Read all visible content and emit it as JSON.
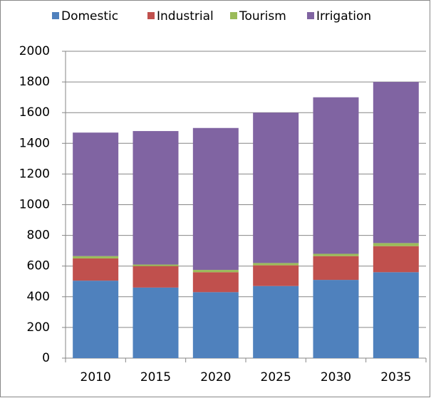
{
  "chart_data": {
    "type": "stacked_bar",
    "categories": [
      "2010",
      "2015",
      "2020",
      "2025",
      "2030",
      "2035"
    ],
    "series": [
      {
        "name": "Domestic",
        "color": "#4f81bd",
        "values": [
          505,
          460,
          430,
          470,
          510,
          560
        ]
      },
      {
        "name": "Industrial",
        "color": "#c0504d",
        "values": [
          145,
          140,
          130,
          135,
          155,
          170
        ]
      },
      {
        "name": "Tourism",
        "color": "#9bbb59",
        "values": [
          15,
          10,
          15,
          15,
          15,
          20
        ]
      },
      {
        "name": "Irrigation",
        "color": "#8064a2",
        "values": [
          805,
          870,
          925,
          980,
          1020,
          1050
        ]
      }
    ],
    "ylim": [
      0,
      2000
    ],
    "yticks": [
      0,
      200,
      400,
      600,
      800,
      1000,
      1200,
      1400,
      1600,
      1800,
      2000
    ],
    "grid": true,
    "legend": "top"
  }
}
